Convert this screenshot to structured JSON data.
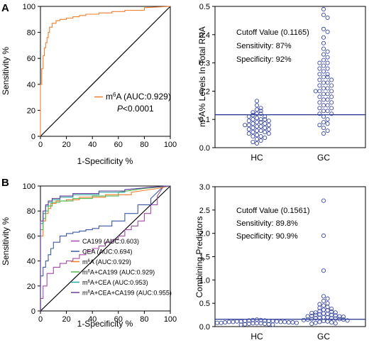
{
  "panels": [
    {
      "letter": "A",
      "title": "",
      "type": "line",
      "xlabel": "1-Specificity %",
      "ylabel": "Sensitivity %",
      "xlim": [
        0,
        100
      ],
      "ylim": [
        0,
        100
      ],
      "xticks": [
        0,
        20,
        40,
        60,
        80,
        100
      ],
      "yticks": [
        0,
        20,
        40,
        60,
        80,
        100
      ],
      "reference_line": true,
      "series": [
        {
          "name": "m6A (AUC:0.929)",
          "color": "#f07f2e",
          "x": [
            0,
            0,
            1,
            1,
            2,
            2,
            3,
            3,
            4,
            4,
            5,
            5,
            6,
            6,
            7,
            7,
            9,
            9,
            12,
            12,
            15,
            15,
            20,
            20,
            25,
            25,
            30,
            30,
            35,
            35,
            45,
            45,
            55,
            55,
            65,
            65,
            80,
            80,
            100
          ],
          "y": [
            0,
            40,
            40,
            52,
            52,
            62,
            62,
            68,
            68,
            72,
            72,
            76,
            76,
            80,
            80,
            84,
            84,
            87,
            87,
            89,
            89,
            90,
            90,
            91,
            91,
            92,
            92,
            93,
            93,
            94,
            94,
            95,
            95,
            96,
            96,
            97,
            97,
            99,
            100
          ]
        }
      ],
      "legend": [
        {
          "label_parts": [
            "m",
            "6",
            "A (AUC:0.929)"
          ],
          "color": "#f07f2e"
        }
      ],
      "annotation": {
        "p_letter": "P",
        "p_rest": "<0.0001"
      }
    },
    {
      "letter": "",
      "title": "",
      "type": "scatter",
      "categories": [
        "HC",
        "GC"
      ],
      "ylabel_parts": [
        "m",
        "6",
        "A% Levels In Total RNA"
      ],
      "ylim": [
        0,
        0.5
      ],
      "yticks": [
        0.0,
        0.1,
        0.2,
        0.3,
        0.4,
        0.5
      ],
      "cutoff_line": 0.1165,
      "stats": [
        "Cutoff Value (0.1165)",
        "Sensitivity: 87%",
        "Specificity: 92%"
      ],
      "series": [
        {
          "category": "HC",
          "values": [
            0.165,
            0.15,
            0.14,
            0.135,
            0.13,
            0.125,
            0.12,
            0.12,
            0.115,
            0.11,
            0.11,
            0.105,
            0.1,
            0.1,
            0.1,
            0.095,
            0.095,
            0.09,
            0.09,
            0.085,
            0.085,
            0.08,
            0.08,
            0.08,
            0.075,
            0.075,
            0.07,
            0.07,
            0.065,
            0.065,
            0.06,
            0.06,
            0.055,
            0.055,
            0.05,
            0.05,
            0.045,
            0.04,
            0.04,
            0.035,
            0.03,
            0.025,
            0.02,
            0.015
          ]
        },
        {
          "category": "GC",
          "values": [
            0.49,
            0.47,
            0.46,
            0.42,
            0.41,
            0.39,
            0.37,
            0.35,
            0.34,
            0.33,
            0.32,
            0.31,
            0.3,
            0.3,
            0.29,
            0.28,
            0.28,
            0.27,
            0.26,
            0.26,
            0.25,
            0.25,
            0.24,
            0.24,
            0.23,
            0.23,
            0.22,
            0.22,
            0.21,
            0.21,
            0.2,
            0.2,
            0.2,
            0.19,
            0.19,
            0.18,
            0.18,
            0.17,
            0.17,
            0.16,
            0.16,
            0.15,
            0.15,
            0.14,
            0.14,
            0.13,
            0.13,
            0.12,
            0.12,
            0.11,
            0.1,
            0.09,
            0.085,
            0.08,
            0.07,
            0.06,
            0.05
          ]
        }
      ]
    },
    {
      "letter": "B",
      "title": "",
      "type": "line",
      "xlabel": "1-Specificity %",
      "ylabel": "Sensitivity %",
      "xlim": [
        0,
        100
      ],
      "ylim": [
        0,
        100
      ],
      "xticks": [
        0,
        20,
        40,
        60,
        80,
        100
      ],
      "yticks": [
        0,
        20,
        40,
        60,
        80,
        100
      ],
      "reference_line": true,
      "series": [
        {
          "name": "CA199 (AUC:0.603)",
          "color": "#a04ca8",
          "x": [
            0,
            0,
            2,
            2,
            5,
            5,
            10,
            10,
            15,
            15,
            20,
            20,
            25,
            25,
            30,
            30,
            35,
            35,
            40,
            40,
            45,
            45,
            50,
            50,
            55,
            55,
            60,
            60,
            65,
            65,
            70,
            70,
            75,
            75,
            80,
            80,
            85,
            85,
            90,
            90,
            95,
            100
          ],
          "y": [
            0,
            10,
            10,
            20,
            20,
            30,
            30,
            35,
            35,
            38,
            38,
            40,
            40,
            42,
            42,
            45,
            45,
            48,
            48,
            50,
            50,
            52,
            52,
            55,
            55,
            57,
            57,
            60,
            60,
            65,
            65,
            68,
            68,
            72,
            72,
            78,
            78,
            85,
            85,
            92,
            100,
            100
          ]
        },
        {
          "name": "CEA (AUC:0.694)",
          "color": "#3b58a0",
          "x": [
            0,
            0,
            2,
            2,
            4,
            4,
            6,
            6,
            8,
            8,
            10,
            10,
            15,
            15,
            20,
            20,
            25,
            25,
            30,
            30,
            35,
            35,
            40,
            40,
            45,
            45,
            55,
            55,
            65,
            65,
            75,
            75,
            85,
            85,
            95,
            100
          ],
          "y": [
            0,
            28,
            28,
            35,
            35,
            40,
            40,
            45,
            45,
            50,
            50,
            55,
            55,
            60,
            60,
            62,
            62,
            63,
            63,
            64,
            64,
            65,
            65,
            66,
            66,
            68,
            68,
            72,
            72,
            78,
            78,
            85,
            85,
            90,
            100,
            100
          ]
        },
        {
          "name": "m6A (AUC:0.929)",
          "color": "#f07f2e",
          "x": [
            0,
            0,
            2,
            2,
            4,
            4,
            6,
            6,
            8,
            8,
            12,
            12,
            20,
            20,
            30,
            30,
            50,
            50,
            70,
            70,
            90,
            100
          ],
          "y": [
            0,
            60,
            60,
            72,
            72,
            78,
            78,
            82,
            82,
            86,
            86,
            88,
            88,
            89,
            89,
            91,
            91,
            93,
            93,
            95,
            98,
            100
          ]
        },
        {
          "name": "m6A+CA199 (AUC:0.929)",
          "color": "#52b84a",
          "x": [
            0,
            0,
            2,
            2,
            4,
            4,
            6,
            6,
            9,
            9,
            15,
            15,
            25,
            25,
            40,
            40,
            60,
            60,
            80,
            100
          ],
          "y": [
            0,
            65,
            65,
            74,
            74,
            80,
            80,
            84,
            84,
            87,
            87,
            88,
            88,
            90,
            90,
            92,
            92,
            95,
            98,
            100
          ]
        },
        {
          "name": "m6A+CEA (AUC:0.953)",
          "color": "#2aa7a3",
          "x": [
            0,
            0,
            2,
            2,
            4,
            4,
            6,
            6,
            9,
            9,
            15,
            15,
            25,
            25,
            45,
            45,
            65,
            65,
            85,
            100
          ],
          "y": [
            0,
            70,
            70,
            78,
            78,
            84,
            84,
            87,
            87,
            89,
            89,
            91,
            91,
            93,
            93,
            95,
            95,
            97,
            99,
            100
          ]
        },
        {
          "name": "m6A+CEA+CA199 (AUC:0.955)",
          "color": "#6a3d9a",
          "x": [
            0,
            0,
            2,
            2,
            4,
            4,
            6,
            6,
            9,
            9,
            15,
            15,
            25,
            25,
            45,
            45,
            65,
            65,
            85,
            100
          ],
          "y": [
            0,
            72,
            72,
            80,
            80,
            85,
            85,
            88,
            88,
            90,
            90,
            92,
            92,
            94,
            94,
            96,
            96,
            97,
            99,
            100
          ]
        }
      ],
      "legend": [
        {
          "label_parts": [
            "CA199 (AUC:0.603)"
          ],
          "color": "#a04ca8"
        },
        {
          "label_parts": [
            "CEA (AUC:0.694)"
          ],
          "color": "#3b58a0"
        },
        {
          "label_parts": [
            "m",
            "6",
            "A (AUC:0.929)"
          ],
          "color": "#f07f2e"
        },
        {
          "label_parts": [
            "m",
            "6",
            "A+CA199 (AUC:0.929)"
          ],
          "color": "#52b84a"
        },
        {
          "label_parts": [
            "m",
            "6",
            "A+CEA (AUC:0.953)"
          ],
          "color": "#2aa7a3"
        },
        {
          "label_parts": [
            "m",
            "6",
            "A+CEA+CA199 (AUC:0.955)"
          ],
          "color": "#6a3d9a"
        }
      ]
    },
    {
      "letter": "",
      "title": "",
      "type": "scatter",
      "categories": [
        "HC",
        "GC"
      ],
      "ylabel_parts": [
        "Combining Predictors"
      ],
      "ylim": [
        0,
        3.0
      ],
      "yticks": [
        0.0,
        0.5,
        1.0,
        1.5,
        2.0,
        2.5,
        3.0
      ],
      "cutoff_line": 0.1561,
      "stats": [
        "Cutoff Value (0.1561)",
        "Sensitivity: 89.8%",
        "Specificity: 90.9%"
      ],
      "series": [
        {
          "category": "HC",
          "values": [
            0.15,
            0.14,
            0.14,
            0.13,
            0.13,
            0.12,
            0.12,
            0.12,
            0.11,
            0.11,
            0.11,
            0.1,
            0.1,
            0.1,
            0.1,
            0.09,
            0.09,
            0.09,
            0.08,
            0.08,
            0.08,
            0.07,
            0.07,
            0.07,
            0.06,
            0.06,
            0.05,
            0.05,
            0.04,
            0.04
          ]
        },
        {
          "category": "GC",
          "values": [
            2.7,
            1.95,
            1.2,
            0.65,
            0.6,
            0.55,
            0.5,
            0.48,
            0.45,
            0.42,
            0.4,
            0.38,
            0.36,
            0.35,
            0.33,
            0.32,
            0.3,
            0.3,
            0.29,
            0.28,
            0.27,
            0.26,
            0.25,
            0.25,
            0.24,
            0.23,
            0.22,
            0.22,
            0.21,
            0.2,
            0.2,
            0.19,
            0.18,
            0.18,
            0.17,
            0.16,
            0.16,
            0.15,
            0.15,
            0.14,
            0.13,
            0.12,
            0.11,
            0.1,
            0.09,
            0.08,
            0.07,
            0.06
          ]
        }
      ]
    }
  ]
}
